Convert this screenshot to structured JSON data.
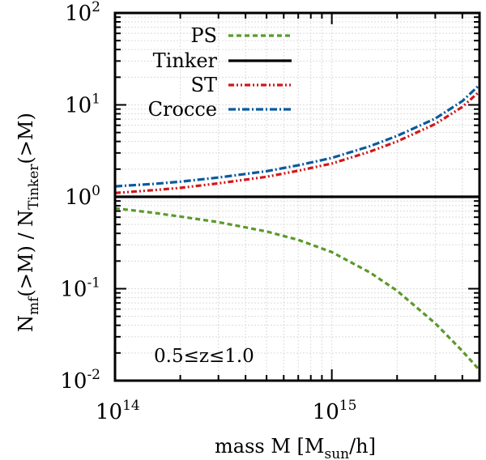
{
  "chart_data": {
    "type": "line",
    "title": "",
    "xlabel": {
      "prefix": "mass M  [M",
      "subscript": "sun",
      "suffix": "/h]"
    },
    "ylabel": {
      "part1": "N",
      "sub1": "mf",
      "part2": "(>M) / N",
      "sub2": "Tinker",
      "part3": "(>M)"
    },
    "x_scale": "log",
    "y_scale": "log",
    "xlim": [
      100000000000000.0,
      4800000000000000.0
    ],
    "ylim": [
      0.01,
      100
    ],
    "grid": true,
    "x_ticks": [
      {
        "value": 100000000000000.0,
        "base": "10",
        "exp": "14"
      },
      {
        "value": 1000000000000000.0,
        "base": "10",
        "exp": "15"
      }
    ],
    "y_ticks": [
      {
        "value": 100,
        "base": "10",
        "exp": "2"
      },
      {
        "value": 10,
        "base": "10",
        "exp": "1"
      },
      {
        "value": 1,
        "base": "10",
        "exp": "0"
      },
      {
        "value": 0.1,
        "base": "10",
        "exp": "-1"
      },
      {
        "value": 0.01,
        "base": "10",
        "exp": "-2"
      }
    ],
    "annotation": "0.5≤z≤1.0",
    "legend_position": "top-left",
    "x": [
      100000000000000.0,
      150000000000000.0,
      200000000000000.0,
      300000000000000.0,
      500000000000000.0,
      700000000000000.0,
      1000000000000000.0,
      1500000000000000.0,
      2000000000000000.0,
      3000000000000000.0,
      4000000000000000.0,
      4800000000000000.0
    ],
    "series": [
      {
        "name": "PS",
        "color": "#5a9a2a",
        "dash": "6,4",
        "values": [
          0.75,
          0.67,
          0.61,
          0.53,
          0.42,
          0.34,
          0.25,
          0.15,
          0.095,
          0.042,
          0.021,
          0.013
        ]
      },
      {
        "name": "Tinker",
        "color": "#000000",
        "dash": "",
        "values": [
          1,
          1,
          1,
          1,
          1,
          1,
          1,
          1,
          1,
          1,
          1,
          1
        ]
      },
      {
        "name": "ST",
        "color": "#d01818",
        "dash": "7,3,2,3,2,3",
        "values": [
          1.1,
          1.18,
          1.25,
          1.4,
          1.65,
          1.92,
          2.3,
          3.1,
          4.0,
          6.2,
          9.5,
          14
        ]
      },
      {
        "name": "Crocce",
        "color": "#0a5a9c",
        "dash": "9,3,2,3",
        "values": [
          1.3,
          1.38,
          1.46,
          1.62,
          1.9,
          2.2,
          2.65,
          3.55,
          4.6,
          7.1,
          11,
          16.5
        ]
      }
    ]
  }
}
